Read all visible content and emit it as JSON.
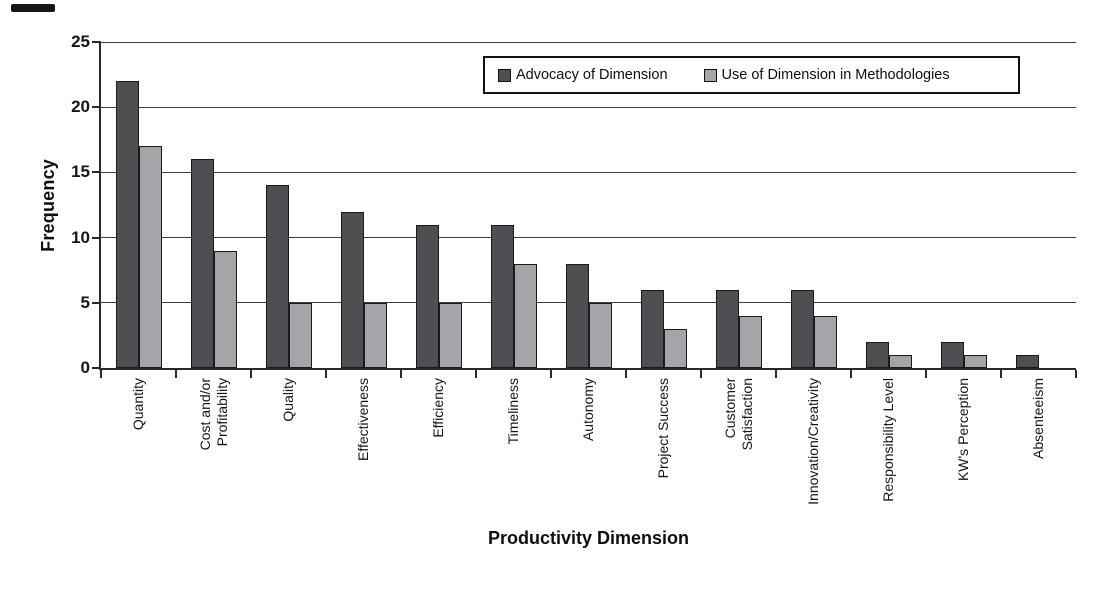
{
  "chart_data": {
    "type": "bar",
    "title": "",
    "xlabel": "Productivity Dimension",
    "ylabel": "Frequency",
    "ylim": [
      0,
      25
    ],
    "yticks": [
      0,
      5,
      10,
      15,
      20,
      25
    ],
    "grid": "horizontal gridlines at each y tick",
    "legend_position": "top-right inside plot, horizontal, boxed",
    "categories": [
      "Quantity",
      "Cost and/or\nProfitability",
      "Quality",
      "Effectiveness",
      "Efficiency",
      "Timeliness",
      "Autonomy",
      "Project Success",
      "Customer\nSatisfaction",
      "Innovation/Creativity",
      "Responsibility Level",
      "KW's Perception",
      "Absenteeism"
    ],
    "series": [
      {
        "name": "Advocacy of Dimension",
        "color": "#4e4e53",
        "values": [
          22,
          16,
          14,
          12,
          11,
          11,
          8,
          6,
          6,
          6,
          2,
          2,
          1
        ]
      },
      {
        "name": "Use of Dimension in Methodologies",
        "color": "#a4a4a9",
        "values": [
          17,
          9,
          5,
          5,
          5,
          8,
          5,
          3,
          4,
          4,
          1,
          1,
          0
        ]
      }
    ]
  },
  "colors": {
    "bar_border": "#1a1a1a",
    "gridline": "#3d3d3d",
    "axis": "#2a2a2a",
    "text": "#111111",
    "legend_border": "#111111",
    "background": "#ffffff"
  }
}
